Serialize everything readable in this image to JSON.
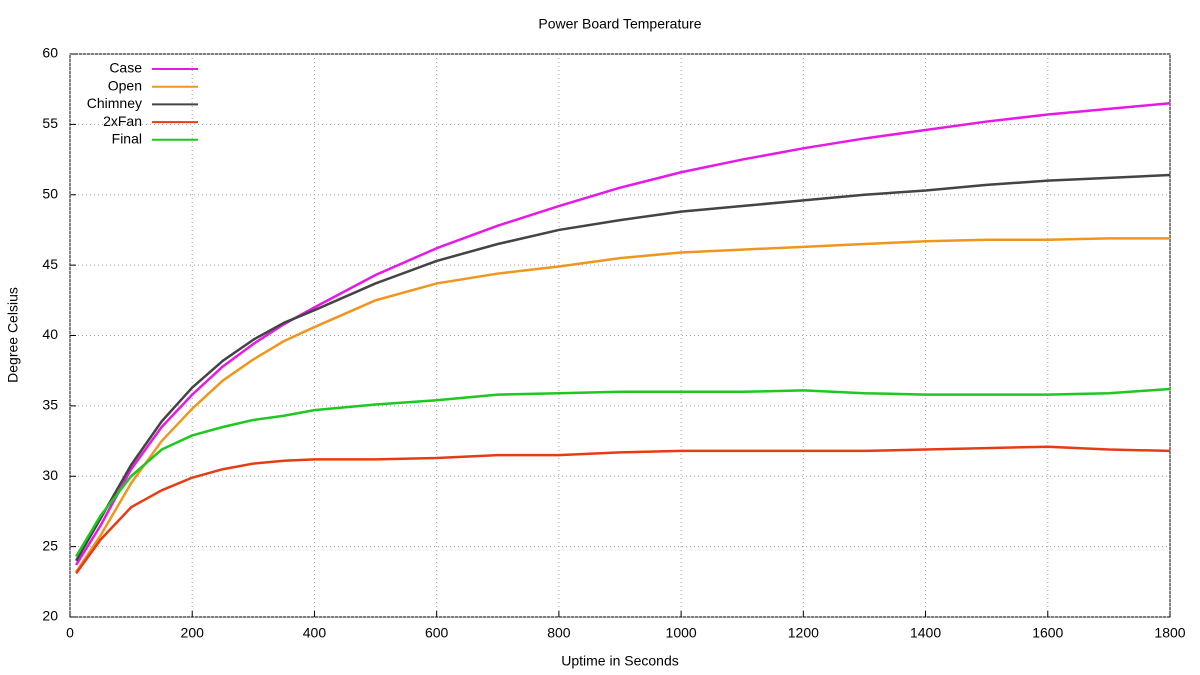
{
  "chart_data": {
    "type": "line",
    "title": "Power Board Temperature",
    "x_label": "Uptime in Seconds",
    "y_label": "Degree Celsius",
    "x": [
      10,
      50,
      100,
      150,
      200,
      250,
      300,
      350,
      400,
      500,
      600,
      700,
      800,
      900,
      1000,
      1100,
      1200,
      1300,
      1400,
      1500,
      1600,
      1700,
      1800
    ],
    "series": [
      {
        "name": "Case",
        "color": "#e619e6",
        "values": [
          23.7,
          26.5,
          30.5,
          33.5,
          35.8,
          37.8,
          39.4,
          40.8,
          42.0,
          44.3,
          46.2,
          47.8,
          49.2,
          50.5,
          51.6,
          52.5,
          53.3,
          54.0,
          54.6,
          55.2,
          55.7,
          56.1,
          56.5
        ]
      },
      {
        "name": "Open",
        "color": "#f0961e",
        "values": [
          23.2,
          25.8,
          29.5,
          32.5,
          34.8,
          36.8,
          38.3,
          39.6,
          40.6,
          42.5,
          43.7,
          44.4,
          44.9,
          45.5,
          45.9,
          46.1,
          46.3,
          46.5,
          46.7,
          46.8,
          46.8,
          46.9,
          46.9
        ]
      },
      {
        "name": "Chimney",
        "color": "#444444",
        "values": [
          24.0,
          27.0,
          30.8,
          33.9,
          36.3,
          38.2,
          39.7,
          40.9,
          41.8,
          43.7,
          45.3,
          46.5,
          47.5,
          48.2,
          48.8,
          49.2,
          49.6,
          50.0,
          50.3,
          50.7,
          51.0,
          51.2,
          51.4
        ]
      },
      {
        "name": "2xFan",
        "color": "#e63c14",
        "values": [
          23.1,
          25.5,
          27.8,
          29.0,
          29.9,
          30.5,
          30.9,
          31.1,
          31.2,
          31.2,
          31.3,
          31.5,
          31.5,
          31.7,
          31.8,
          31.8,
          31.8,
          31.8,
          31.9,
          32.0,
          32.1,
          31.9,
          31.8
        ]
      },
      {
        "name": "Final",
        "color": "#1ec81e",
        "values": [
          24.3,
          27.2,
          30.0,
          31.9,
          32.9,
          33.5,
          34.0,
          34.3,
          34.7,
          35.1,
          35.4,
          35.8,
          35.9,
          36.0,
          36.0,
          36.0,
          36.1,
          35.9,
          35.8,
          35.8,
          35.8,
          35.9,
          36.2
        ]
      }
    ],
    "xlim": [
      0,
      1800
    ],
    "xticks": [
      0,
      200,
      400,
      600,
      800,
      1000,
      1200,
      1400,
      1600,
      1800
    ],
    "ylim": [
      20,
      60
    ],
    "yticks": [
      20,
      25,
      30,
      35,
      40,
      45,
      50,
      55,
      60
    ],
    "grid": true,
    "legend": "top-left"
  }
}
